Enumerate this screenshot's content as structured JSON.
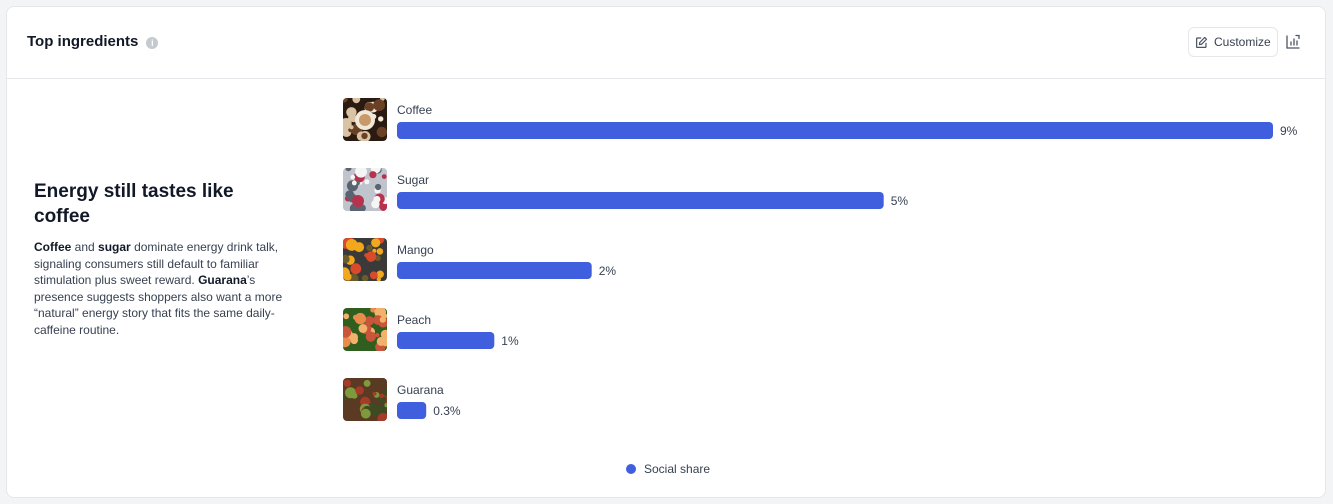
{
  "header": {
    "title": "Top ingredients",
    "customize_label": "Customize"
  },
  "insight": {
    "title": "Energy still tastes like coffee",
    "body_parts": [
      {
        "text": "Coffee",
        "bold": true
      },
      {
        "text": " and ",
        "bold": false
      },
      {
        "text": "sugar",
        "bold": true
      },
      {
        "text": " dominate energy drink talk, signaling consumers still default to familiar stimulation plus sweet reward. ",
        "bold": false
      },
      {
        "text": "Guarana",
        "bold": true
      },
      {
        "text": "’s presence suggests shoppers also want a more “natural” energy story that fits the same daily-caffeine routine.",
        "bold": false
      }
    ]
  },
  "colors": {
    "bar": "#3f5fdf",
    "accent": "#3f5fdf"
  },
  "chart_data": {
    "type": "bar",
    "orientation": "horizontal",
    "categories": [
      "Coffee",
      "Sugar",
      "Mango",
      "Peach",
      "Guarana"
    ],
    "series": [
      {
        "name": "Social share",
        "values": [
          9,
          5,
          2,
          1,
          0.3
        ]
      }
    ],
    "value_labels": [
      "9%",
      "5%",
      "2%",
      "1%",
      "0.3%"
    ],
    "thumbnails": [
      "coffee-thumbnail",
      "sugar-thumbnail",
      "mango-thumbnail",
      "peach-thumbnail",
      "guarana-thumbnail"
    ],
    "legend_position": "bottom",
    "grid": false
  }
}
